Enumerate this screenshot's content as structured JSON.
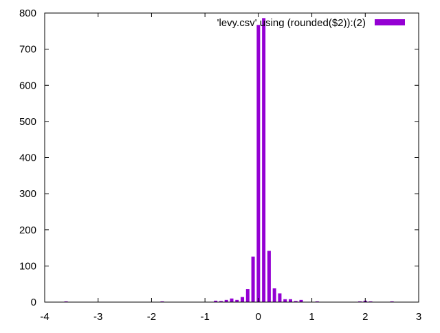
{
  "chart_data": {
    "type": "bar",
    "title": "",
    "xlabel": "",
    "ylabel": "",
    "xlim": [
      -4,
      3
    ],
    "ylim": [
      0,
      800
    ],
    "xticks": [
      -4,
      -3,
      -2,
      -1,
      0,
      1,
      2,
      3
    ],
    "yticks": [
      0,
      100,
      200,
      300,
      400,
      500,
      600,
      700,
      800
    ],
    "bar_color": "#9400d3",
    "grid": false,
    "legend_position": "top-right",
    "series": [
      {
        "name": "'levy.csv' using (rounded($2)):(2)",
        "x": [
          -3.6,
          -1.8,
          -0.8,
          -0.7,
          -0.6,
          -0.5,
          -0.4,
          -0.3,
          -0.2,
          -0.1,
          0.0,
          0.1,
          0.2,
          0.3,
          0.4,
          0.5,
          0.6,
          0.7,
          0.8,
          1.1,
          1.9,
          2.0,
          2.1,
          2.5
        ],
        "values": [
          2,
          2,
          4,
          3,
          6,
          10,
          6,
          14,
          36,
          126,
          767,
          786,
          142,
          38,
          24,
          8,
          8,
          3,
          6,
          2,
          2,
          4,
          2,
          2
        ]
      }
    ]
  }
}
